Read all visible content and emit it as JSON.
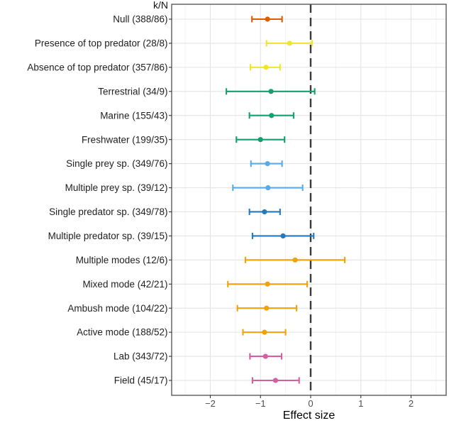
{
  "chart_data": {
    "type": "forest",
    "title": "k/N",
    "xlabel": "Effect size",
    "x_ticks": [
      -2,
      -1,
      0,
      1,
      2
    ],
    "xlim": [
      -2.77,
      2.7
    ],
    "zero_line": 0,
    "grid": true,
    "legend": "none",
    "colors": {
      "null": "#da5e07",
      "top-predator": "#f2e42c",
      "habitat": "#12a16e",
      "prey-diversity": "#58aae9",
      "predator-diversity": "#2379bc",
      "hunting-mode": "#f1a109",
      "setting": "#d45e9f"
    },
    "rows": [
      {
        "label": "Null (388/86)",
        "group": "null",
        "estimate": -0.86,
        "lower": -1.17,
        "upper": -0.57
      },
      {
        "label": "Presence of top predator (28/8)",
        "group": "top-predator",
        "estimate": -0.42,
        "lower": -0.88,
        "upper": 0.03
      },
      {
        "label": "Absence of top predator (357/86)",
        "group": "top-predator",
        "estimate": -0.89,
        "lower": -1.2,
        "upper": -0.61
      },
      {
        "label": "Terrestrial (34/9)",
        "group": "habitat",
        "estimate": -0.79,
        "lower": -1.68,
        "upper": 0.08
      },
      {
        "label": "Marine (155/43)",
        "group": "habitat",
        "estimate": -0.78,
        "lower": -1.22,
        "upper": -0.34
      },
      {
        "label": "Freshwater (199/35)",
        "group": "habitat",
        "estimate": -1.0,
        "lower": -1.48,
        "upper": -0.52
      },
      {
        "label": "Single prey sp. (349/76)",
        "group": "prey-diversity",
        "estimate": -0.86,
        "lower": -1.19,
        "upper": -0.57
      },
      {
        "label": "Multiple prey sp. (39/12)",
        "group": "prey-diversity",
        "estimate": -0.85,
        "lower": -1.55,
        "upper": -0.16
      },
      {
        "label": "Single predator sp. (349/78)",
        "group": "predator-diversity",
        "estimate": -0.92,
        "lower": -1.22,
        "upper": -0.61
      },
      {
        "label": "Multiple predator sp. (39/15)",
        "group": "predator-diversity",
        "estimate": -0.55,
        "lower": -1.16,
        "upper": 0.06
      },
      {
        "label": "Multiple modes (12/6)",
        "group": "hunting-mode",
        "estimate": -0.31,
        "lower": -1.3,
        "upper": 0.68
      },
      {
        "label": "Mixed mode (42/21)",
        "group": "hunting-mode",
        "estimate": -0.86,
        "lower": -1.65,
        "upper": -0.07
      },
      {
        "label": "Ambush mode (104/22)",
        "group": "hunting-mode",
        "estimate": -0.88,
        "lower": -1.46,
        "upper": -0.28
      },
      {
        "label": "Active mode (188/52)",
        "group": "hunting-mode",
        "estimate": -0.92,
        "lower": -1.35,
        "upper": -0.5
      },
      {
        "label": "Lab (343/72)",
        "group": "setting",
        "estimate": -0.9,
        "lower": -1.21,
        "upper": -0.58
      },
      {
        "label": "Field (45/17)",
        "group": "setting",
        "estimate": -0.7,
        "lower": -1.16,
        "upper": -0.23
      }
    ]
  }
}
